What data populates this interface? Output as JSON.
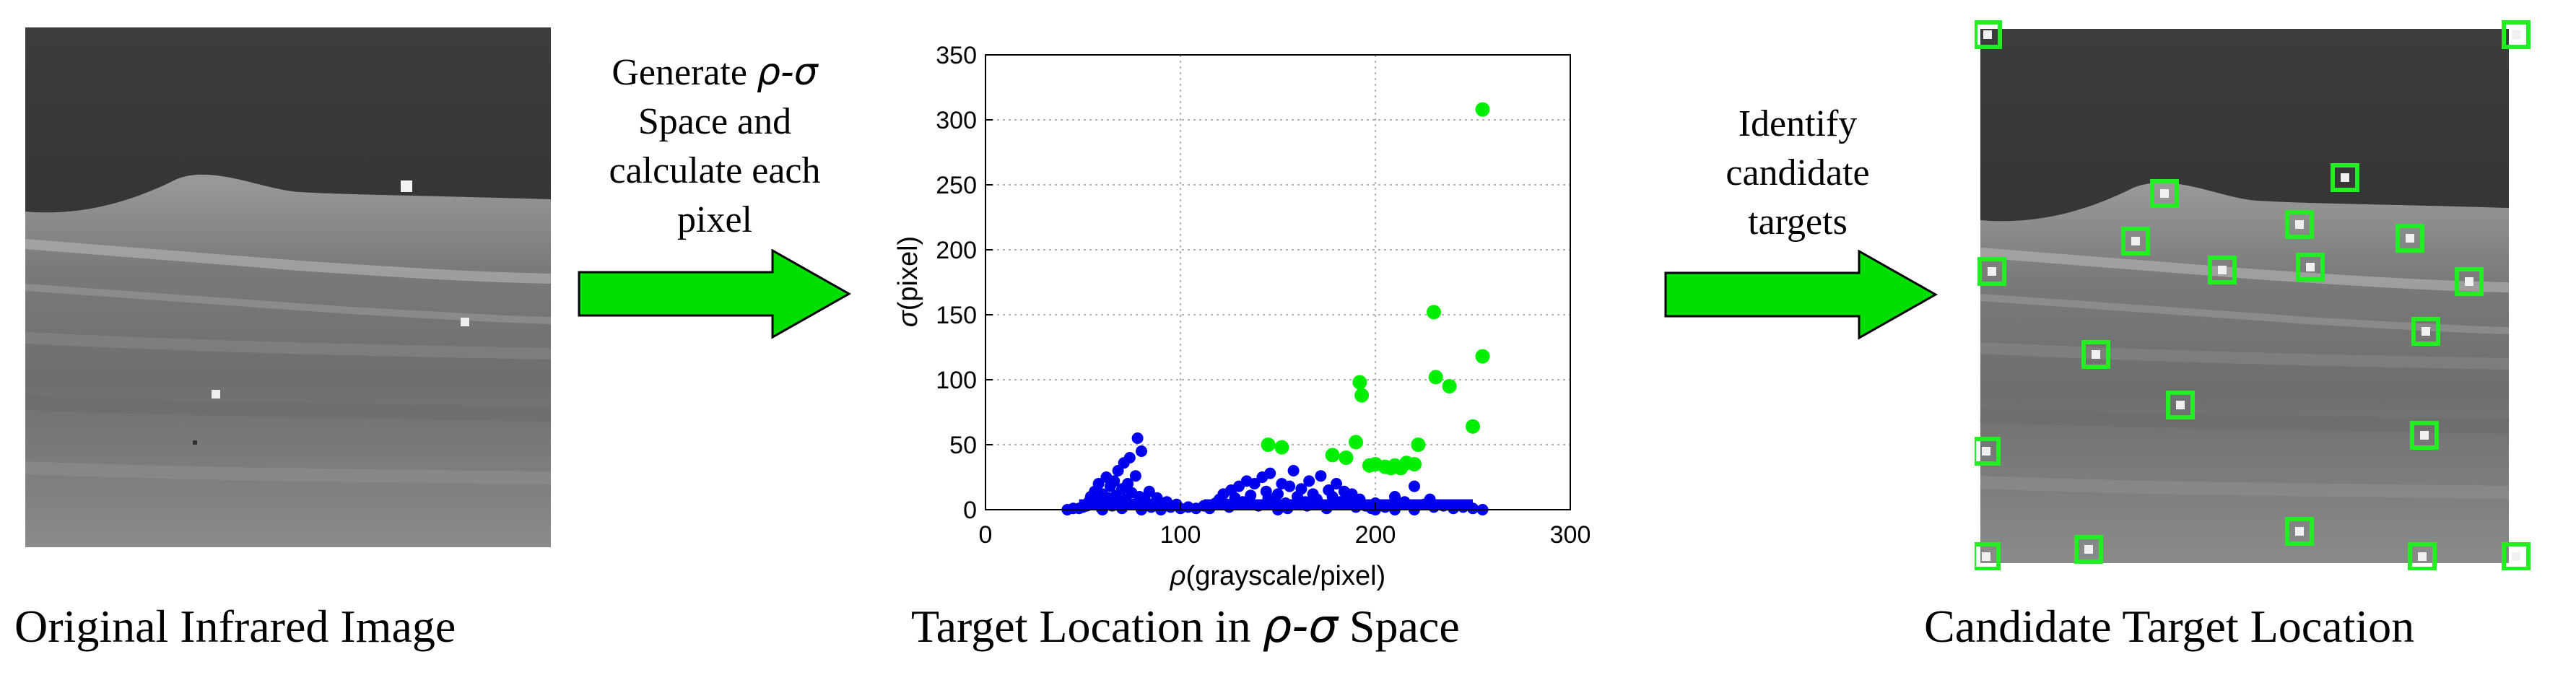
{
  "panels": {
    "left": {
      "caption": "Original Infrared Image"
    },
    "middle": {
      "caption_prefix": "Target Location in ",
      "caption_symbol": "ρ-σ",
      "caption_suffix": " Space"
    },
    "right": {
      "caption": "Candidate Target Location"
    }
  },
  "arrows": {
    "first": {
      "line1_prefix": "Generate ",
      "line1_symbol": "ρ-σ",
      "line2": "Space and",
      "line3": "calculate each",
      "line4": "pixel"
    },
    "second": {
      "line1": "Identify",
      "line2": "candidate",
      "line3": "targets"
    }
  },
  "colors": {
    "arrow_fill": "#00dd00",
    "background_pixels": "#0000ee",
    "candidate_targets": "#00ee00",
    "marker_box": "#22ee22"
  },
  "chart_data": {
    "type": "scatter",
    "xlabel_symbol": "ρ",
    "xlabel": "(grayscale/pixel)",
    "ylabel_symbol": "σ",
    "ylabel": "(pixel)",
    "xlim": [
      0,
      300
    ],
    "ylim": [
      0,
      350
    ],
    "xticks": [
      "0",
      "100",
      "200",
      "300"
    ],
    "yticks": [
      "0",
      "50",
      "100",
      "150",
      "200",
      "250",
      "300",
      "350"
    ],
    "grid": true,
    "series": [
      {
        "color": "#0000ee",
        "points": [
          [
            42,
            0
          ],
          [
            45,
            1
          ],
          [
            48,
            1
          ],
          [
            50,
            2
          ],
          [
            52,
            3
          ],
          [
            53,
            6
          ],
          [
            54,
            10
          ],
          [
            55,
            4
          ],
          [
            56,
            14
          ],
          [
            57,
            8
          ],
          [
            58,
            20
          ],
          [
            59,
            2
          ],
          [
            60,
            12
          ],
          [
            61,
            5
          ],
          [
            62,
            25
          ],
          [
            63,
            9
          ],
          [
            64,
            18
          ],
          [
            65,
            3
          ],
          [
            66,
            22
          ],
          [
            67,
            11
          ],
          [
            68,
            30
          ],
          [
            69,
            6
          ],
          [
            70,
            16
          ],
          [
            71,
            36
          ],
          [
            72,
            8
          ],
          [
            73,
            20
          ],
          [
            74,
            40
          ],
          [
            75,
            13
          ],
          [
            76,
            4
          ],
          [
            77,
            26
          ],
          [
            78,
            55
          ],
          [
            79,
            10
          ],
          [
            80,
            45
          ],
          [
            82,
            7
          ],
          [
            84,
            14
          ],
          [
            85,
            2
          ],
          [
            87,
            5
          ],
          [
            88,
            9
          ],
          [
            90,
            3
          ],
          [
            93,
            6
          ],
          [
            95,
            2
          ],
          [
            98,
            4
          ],
          [
            100,
            1
          ],
          [
            104,
            2
          ],
          [
            108,
            1
          ],
          [
            112,
            3
          ],
          [
            115,
            2
          ],
          [
            118,
            5
          ],
          [
            120,
            8
          ],
          [
            122,
            12
          ],
          [
            124,
            4
          ],
          [
            126,
            15
          ],
          [
            128,
            9
          ],
          [
            130,
            18
          ],
          [
            132,
            6
          ],
          [
            134,
            22
          ],
          [
            136,
            11
          ],
          [
            138,
            20
          ],
          [
            140,
            3
          ],
          [
            142,
            25
          ],
          [
            144,
            14
          ],
          [
            146,
            28
          ],
          [
            148,
            7
          ],
          [
            150,
            12
          ],
          [
            152,
            20
          ],
          [
            154,
            5
          ],
          [
            156,
            18
          ],
          [
            158,
            30
          ],
          [
            160,
            10
          ],
          [
            162,
            16
          ],
          [
            164,
            6
          ],
          [
            166,
            22
          ],
          [
            168,
            12
          ],
          [
            170,
            8
          ],
          [
            172,
            26
          ],
          [
            174,
            3
          ],
          [
            176,
            15
          ],
          [
            178,
            10
          ],
          [
            180,
            20
          ],
          [
            182,
            6
          ],
          [
            184,
            14
          ],
          [
            186,
            4
          ],
          [
            188,
            12
          ],
          [
            190,
            2
          ],
          [
            192,
            8
          ],
          [
            195,
            3
          ],
          [
            198,
            1
          ],
          [
            200,
            5
          ],
          [
            205,
            2
          ],
          [
            210,
            10
          ],
          [
            215,
            6
          ],
          [
            220,
            18
          ],
          [
            225,
            4
          ],
          [
            228,
            8
          ],
          [
            230,
            2
          ],
          [
            235,
            3
          ],
          [
            240,
            1
          ],
          [
            245,
            2
          ],
          [
            250,
            1
          ],
          [
            255,
            0
          ],
          [
            125,
            2
          ],
          [
            135,
            5
          ],
          [
            145,
            9
          ],
          [
            155,
            1
          ],
          [
            165,
            3
          ],
          [
            175,
            1
          ],
          [
            185,
            7
          ],
          [
            115,
            1
          ],
          [
            60,
            0
          ],
          [
            70,
            1
          ],
          [
            80,
            0
          ],
          [
            90,
            0
          ],
          [
            150,
            0
          ],
          [
            200,
            0
          ],
          [
            210,
            0
          ],
          [
            220,
            0
          ]
        ]
      },
      {
        "color": "#00ee00",
        "points": [
          [
            145,
            50
          ],
          [
            152,
            48
          ],
          [
            178,
            42
          ],
          [
            185,
            40
          ],
          [
            190,
            52
          ],
          [
            192,
            98
          ],
          [
            193,
            88
          ],
          [
            197,
            34
          ],
          [
            200,
            35
          ],
          [
            205,
            33
          ],
          [
            208,
            32
          ],
          [
            210,
            34
          ],
          [
            213,
            32
          ],
          [
            216,
            36
          ],
          [
            220,
            35
          ],
          [
            222,
            50
          ],
          [
            230,
            152
          ],
          [
            231,
            102
          ],
          [
            238,
            95
          ],
          [
            250,
            64
          ],
          [
            255,
            118
          ],
          [
            255,
            308
          ]
        ]
      }
    ]
  }
}
